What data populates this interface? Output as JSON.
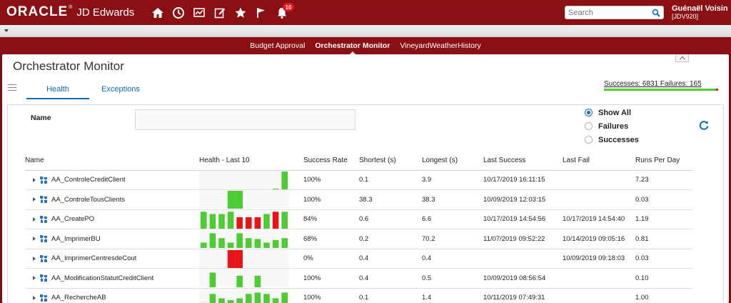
{
  "header": {
    "brand": "ORACLE",
    "brand_reg": "®",
    "product": "JD Edwards",
    "icons": [
      "home-icon",
      "recent-icon",
      "watchlist-icon",
      "edit-icon",
      "favorites-icon",
      "flag-icon",
      "bell-icon"
    ],
    "notification_count": "10",
    "search_placeholder": "Search",
    "user_name": "Guénaël Voisin",
    "user_env": "[JDV920]"
  },
  "app_tabs": [
    {
      "label": "Budget Approval",
      "active": false
    },
    {
      "label": "Orchestrator Monitor",
      "active": true
    },
    {
      "label": "VineyardWeatherHistory",
      "active": false
    }
  ],
  "page": {
    "title": "Orchestrator Monitor",
    "tabs": [
      {
        "label": "Health",
        "active": true
      },
      {
        "label": "Exceptions",
        "active": false
      }
    ],
    "summary": {
      "text": "Successes: 6831 Failures: 165",
      "successes": 6831,
      "failures": 165
    }
  },
  "filters": {
    "name_label": "Name",
    "name_value": "",
    "options": [
      {
        "label": "Show All",
        "checked": true
      },
      {
        "label": "Failures",
        "checked": false
      },
      {
        "label": "Successes",
        "checked": false
      }
    ]
  },
  "colors": {
    "success": "#4ecc33",
    "failure": "#e8141a",
    "brand": "#8b1014",
    "link": "#0b6cb8"
  },
  "table": {
    "columns": [
      "Name",
      "Health - Last 10",
      "Success Rate",
      "Shortest (s)",
      "Longest (s)",
      "Last Success",
      "Last Fail",
      "Runs Per Day"
    ],
    "rows": [
      {
        "name": "AA_ControleCreditClient",
        "rate": "100%",
        "shortest": "0.1",
        "longest": "3.9",
        "last_success": "10/17/2019 16:11:15",
        "last_fail": "",
        "runs": "7.23",
        "health": [
          {
            "v": 0,
            "s": 1
          },
          {
            "v": 0,
            "s": 1
          },
          {
            "v": 0,
            "s": 1
          },
          {
            "v": 0,
            "s": 1
          },
          {
            "v": 0,
            "s": 1
          },
          {
            "v": 0,
            "s": 1
          },
          {
            "v": 0,
            "s": 1
          },
          {
            "v": 0,
            "s": 1
          },
          {
            "v": 0.03,
            "s": 1
          },
          {
            "v": 1,
            "s": 1
          }
        ]
      },
      {
        "name": "AA_ControleTousClients",
        "rate": "100%",
        "shortest": "38.3",
        "longest": "38.3",
        "last_success": "10/09/2019 12:03:15",
        "last_fail": "",
        "runs": "0.03",
        "health": [
          {
            "v": 0,
            "s": 1
          },
          {
            "v": 0,
            "s": 1
          },
          {
            "v": 0,
            "s": 1
          },
          {
            "v": 1,
            "s": 1
          },
          {
            "v": 1,
            "s": 1
          },
          {
            "v": 0,
            "s": 1
          },
          {
            "v": 0,
            "s": 1
          },
          {
            "v": 0,
            "s": 1
          },
          {
            "v": 0,
            "s": 1
          },
          {
            "v": 0,
            "s": 1
          }
        ]
      },
      {
        "name": "AA_CreatePO",
        "rate": "84%",
        "shortest": "0.6",
        "longest": "6.6",
        "last_success": "10/17/2019 14:54:56",
        "last_fail": "10/17/2019 14:54:40",
        "runs": "1.19",
        "health": [
          {
            "v": 0.95,
            "s": 1
          },
          {
            "v": 0.82,
            "s": 1
          },
          {
            "v": 0.82,
            "s": 1
          },
          {
            "v": 0.95,
            "s": 1
          },
          {
            "v": 0.64,
            "s": 0
          },
          {
            "v": 0.64,
            "s": 0
          },
          {
            "v": 0.64,
            "s": 0
          },
          {
            "v": 0.82,
            "s": 1
          },
          {
            "v": 0.95,
            "s": 0
          },
          {
            "v": 0.95,
            "s": 1
          }
        ]
      },
      {
        "name": "AA_ImprimerBU",
        "rate": "68%",
        "shortest": "0.2",
        "longest": "70.2",
        "last_success": "11/07/2019 09:52:22",
        "last_fail": "10/14/2019 09:05:16",
        "runs": "0.81",
        "health": [
          {
            "v": 0.3,
            "s": 1
          },
          {
            "v": 0.82,
            "s": 1
          },
          {
            "v": 0.55,
            "s": 1
          },
          {
            "v": 0.3,
            "s": 1
          },
          {
            "v": 0.82,
            "s": 1
          },
          {
            "v": 0.55,
            "s": 1
          },
          {
            "v": 0.5,
            "s": 1
          },
          {
            "v": 0.3,
            "s": 1
          },
          {
            "v": 0.45,
            "s": 1
          },
          {
            "v": 0.55,
            "s": 1
          }
        ]
      },
      {
        "name": "AA_ImprimerCentresdeCout",
        "rate": "0%",
        "shortest": "0.4",
        "longest": "0.4",
        "last_success": "",
        "last_fail": "10/09/2019 09:18:03",
        "runs": "0.03",
        "health": [
          {
            "v": 0,
            "s": 0
          },
          {
            "v": 0,
            "s": 0
          },
          {
            "v": 0,
            "s": 0
          },
          {
            "v": 1,
            "s": 0
          },
          {
            "v": 1,
            "s": 0
          },
          {
            "v": 0,
            "s": 0
          },
          {
            "v": 0,
            "s": 0
          },
          {
            "v": 0,
            "s": 0
          },
          {
            "v": 0,
            "s": 0
          },
          {
            "v": 0,
            "s": 0
          }
        ]
      },
      {
        "name": "AA_ModificationStatutCreditClient",
        "rate": "100%",
        "shortest": "0.4",
        "longest": "0.5",
        "last_success": "10/09/2019 08:56:54",
        "last_fail": "",
        "runs": "0.10",
        "health": [
          {
            "v": 0,
            "s": 1
          },
          {
            "v": 0.82,
            "s": 1
          },
          {
            "v": 0,
            "s": 1
          },
          {
            "v": 0,
            "s": 1
          },
          {
            "v": 0.65,
            "s": 1
          },
          {
            "v": 0,
            "s": 1
          },
          {
            "v": 0.65,
            "s": 1
          },
          {
            "v": 0,
            "s": 1
          },
          {
            "v": 0,
            "s": 1
          },
          {
            "v": 0,
            "s": 1
          }
        ]
      },
      {
        "name": "AA_RechercheAB",
        "rate": "100%",
        "shortest": "0.1",
        "longest": "1.4",
        "last_success": "10/11/2019 07:49:31",
        "last_fail": "",
        "runs": "1.00",
        "health": [
          {
            "v": 0.25,
            "s": 1
          },
          {
            "v": 0.75,
            "s": 1
          },
          {
            "v": 0.5,
            "s": 1
          },
          {
            "v": 0.4,
            "s": 1
          },
          {
            "v": 0.5,
            "s": 1
          },
          {
            "v": 0.75,
            "s": 1
          },
          {
            "v": 0.82,
            "s": 1
          },
          {
            "v": 0.75,
            "s": 1
          },
          {
            "v": 0.5,
            "s": 1
          },
          {
            "v": 0.82,
            "s": 1
          }
        ]
      }
    ]
  }
}
